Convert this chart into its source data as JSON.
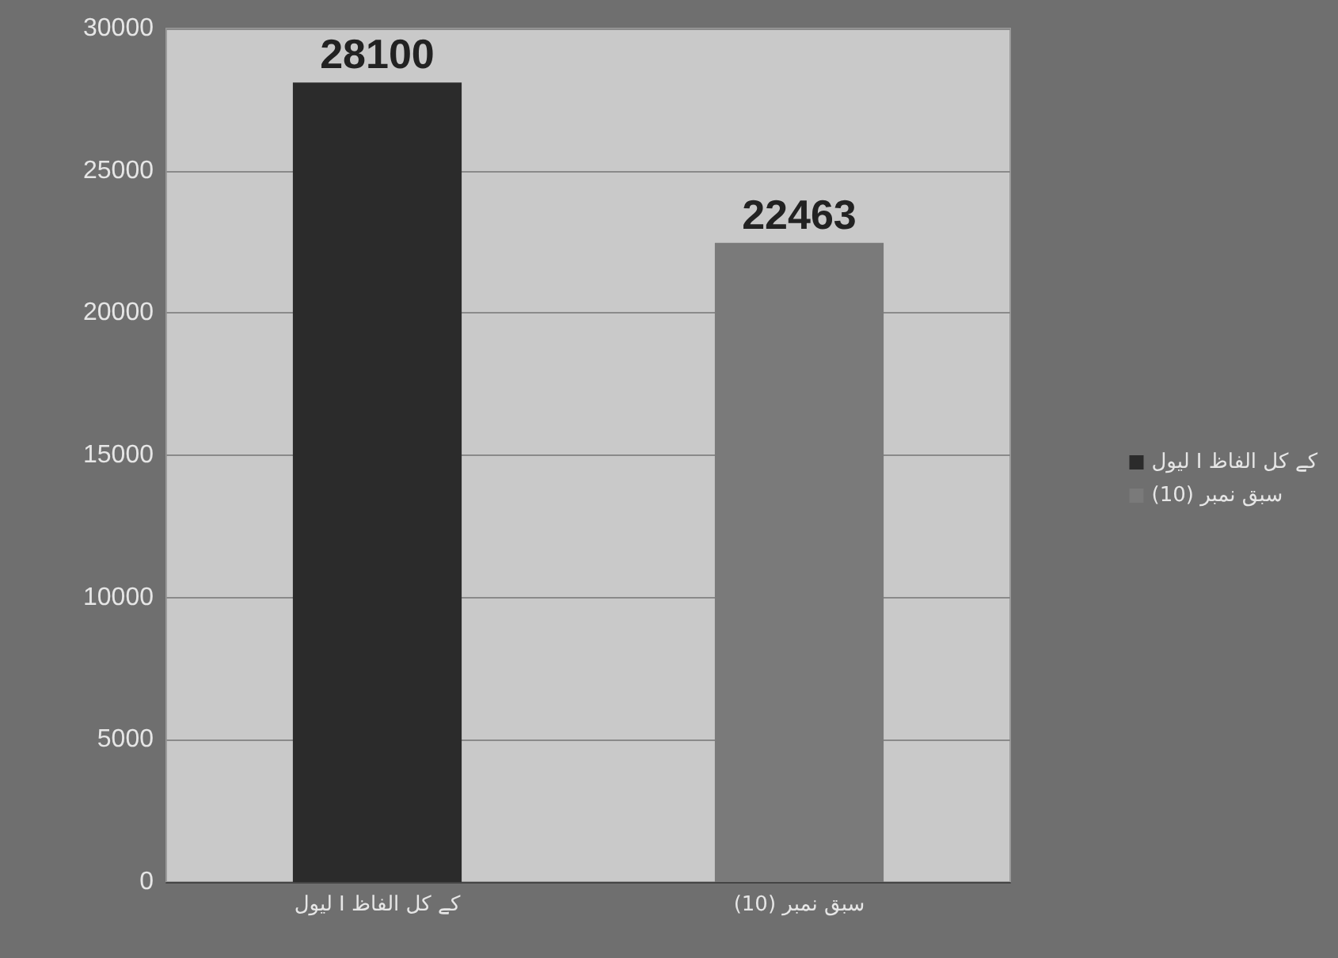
{
  "chart_data": {
    "type": "bar",
    "categories": [
      "لیول I کے کل الفاظ",
      "سبق نمبر (10)"
    ],
    "series": [
      {
        "name": "لیول I کے کل الفاظ",
        "color": "#2b2b2b",
        "values": [
          28100,
          null
        ]
      },
      {
        "name": "سبق نمبر (10)",
        "color": "#7a7a7a",
        "values": [
          null,
          22463
        ]
      }
    ],
    "stacked": true,
    "ylim": [
      0,
      30000
    ],
    "yticks": [
      0,
      5000,
      10000,
      15000,
      20000,
      25000,
      30000
    ],
    "grid": "y",
    "legend": "right",
    "data_labels": true
  }
}
